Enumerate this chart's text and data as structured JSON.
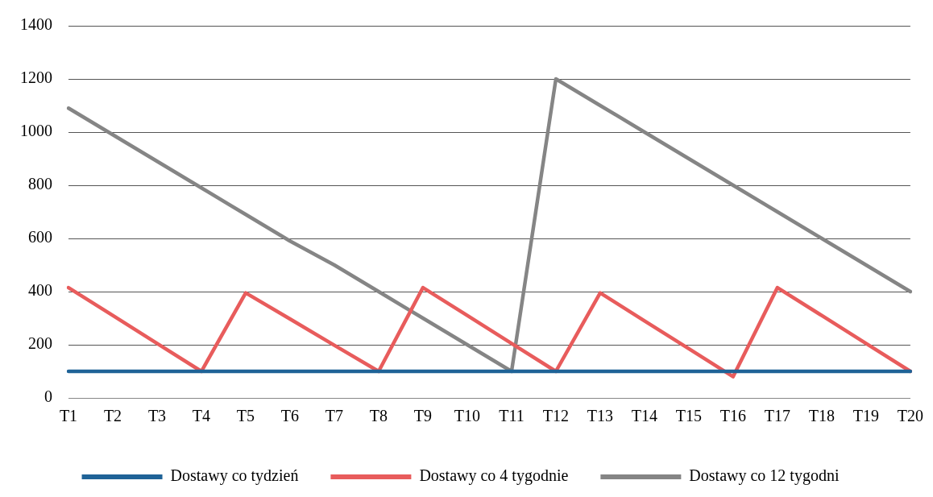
{
  "chart_data": {
    "type": "line",
    "categories": [
      "T1",
      "T2",
      "T3",
      "T4",
      "T5",
      "T6",
      "T7",
      "T8",
      "T9",
      "T10",
      "T11",
      "T12",
      "T13",
      "T14",
      "T15",
      "T16",
      "T17",
      "T18",
      "T19",
      "T20"
    ],
    "series": [
      {
        "name": "Dostawy co tydzień",
        "color": "#1f6397",
        "values": [
          100,
          100,
          100,
          100,
          100,
          100,
          100,
          100,
          100,
          100,
          100,
          100,
          100,
          100,
          100,
          100,
          100,
          100,
          100,
          100
        ]
      },
      {
        "name": "Dostawy co 4 tygodnie",
        "color": "#e85c5c",
        "values": [
          415,
          310,
          205,
          100,
          395,
          297,
          198,
          100,
          415,
          310,
          205,
          100,
          395,
          290,
          185,
          80,
          415,
          310,
          205,
          100
        ]
      },
      {
        "name": "Dostawy co 12 tygodni",
        "color": "#858585",
        "values": [
          1090,
          990,
          890,
          790,
          690,
          590,
          500,
          400,
          300,
          200,
          100,
          1200,
          1100,
          1000,
          900,
          800,
          700,
          600,
          500,
          400
        ]
      }
    ],
    "ylim": [
      0,
      1400
    ],
    "yticks": [
      0,
      200,
      400,
      600,
      800,
      1000,
      1200,
      1400
    ],
    "grid": "y",
    "legend": "bottom",
    "marker": "none",
    "line_style": "solid"
  }
}
